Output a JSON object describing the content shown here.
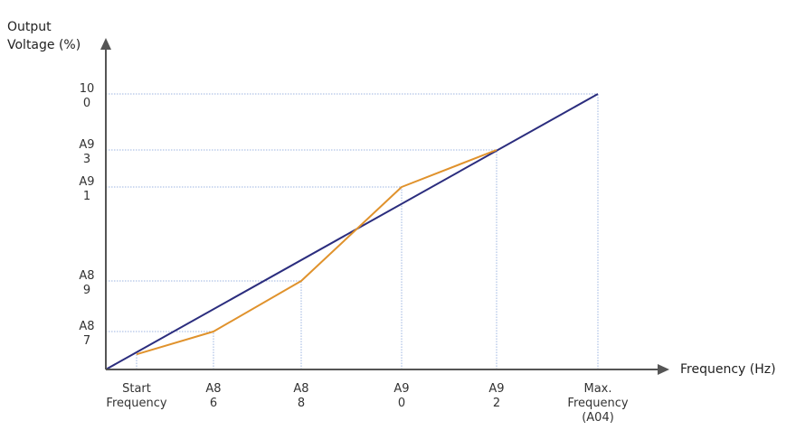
{
  "chart_data": {
    "type": "line",
    "xlabel": "Frequency (Hz)",
    "ylabel": [
      "Output",
      "Voltage (%)"
    ],
    "x_ticks": [
      {
        "lines": [
          "Start",
          "Frequency"
        ],
        "x": 1
      },
      {
        "lines": [
          "A8",
          "6"
        ],
        "x": 2
      },
      {
        "lines": [
          "A8",
          "8"
        ],
        "x": 3
      },
      {
        "lines": [
          "A9",
          "0"
        ],
        "x": 4
      },
      {
        "lines": [
          "A9",
          "2"
        ],
        "x": 5
      },
      {
        "lines": [
          "Max.",
          "Frequency",
          "(A04)"
        ],
        "x": 6
      }
    ],
    "y_ticks": [
      {
        "lines": [
          "A8",
          "7"
        ],
        "y": 1
      },
      {
        "lines": [
          "A8",
          "9"
        ],
        "y": 2
      },
      {
        "lines": [
          "A9",
          "1"
        ],
        "y": 3
      },
      {
        "lines": [
          "A9",
          "3"
        ],
        "y": 4
      },
      {
        "lines": [
          "10",
          "0"
        ],
        "y": 5
      }
    ],
    "series": [
      {
        "color": "#2b2d7e",
        "points": [
          [
            0,
            0
          ],
          [
            6,
            5
          ]
        ]
      },
      {
        "color": "#e0922c",
        "points": [
          [
            1,
            0.4
          ],
          [
            2,
            1
          ],
          [
            3,
            2
          ],
          [
            4,
            3
          ],
          [
            5,
            4
          ]
        ]
      }
    ],
    "grid": {
      "color": "#9db4e0",
      "style": "dotted"
    },
    "axis_color": "#555555"
  }
}
